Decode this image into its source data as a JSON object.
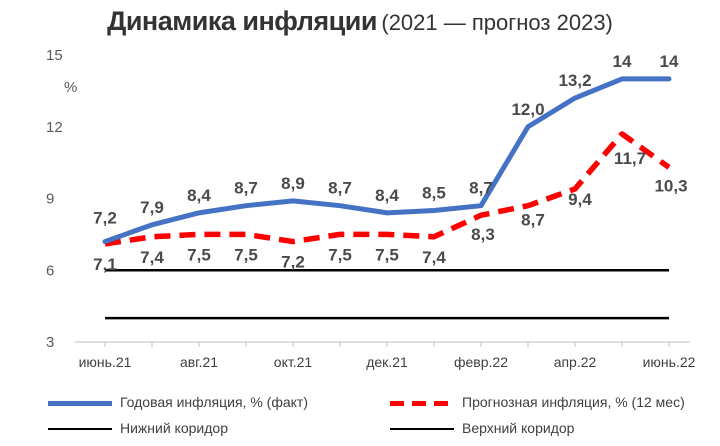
{
  "title": {
    "main": "Динамика инфляции",
    "sub": "(2021 — прогноз 2023)"
  },
  "chart_data": {
    "type": "line",
    "y_unit": "%",
    "ylim": [
      3,
      15
    ],
    "y_ticks": [
      "3",
      "6",
      "9",
      "12",
      "15"
    ],
    "x_tick_labels": [
      "июнь.21",
      "авг.21",
      "окт.21",
      "дек.21",
      "февр.22",
      "апр.22",
      "июнь.22"
    ],
    "grid": false,
    "legend_position": "bottom",
    "series": [
      {
        "name": "Годовая инфляция, % (факт)",
        "color": "#4472C4",
        "style": "solid",
        "values": [
          7.2,
          7.9,
          8.4,
          8.7,
          8.9,
          8.7,
          8.4,
          8.5,
          8.7,
          12.0,
          13.2,
          14,
          14
        ],
        "labels": [
          "7,2",
          "7,9",
          "8,4",
          "8,7",
          "8,9",
          "8,7",
          "8,4",
          "8,5",
          "8,7",
          "12,0",
          "13,2",
          "14",
          "14"
        ]
      },
      {
        "name": "Прогнозная инфляция, % (12 мес)",
        "color": "#FF0000",
        "style": "dashed",
        "values": [
          7.1,
          7.4,
          7.5,
          7.5,
          7.2,
          7.5,
          7.5,
          7.4,
          8.3,
          8.7,
          9.4,
          11.7,
          10.3
        ],
        "labels": [
          "7,1",
          "7,4",
          "7,5",
          "7,5",
          "7,2",
          "7,5",
          "7,5",
          "7,4",
          "8,3",
          "8,7",
          "9,4",
          "11,7",
          "10,3"
        ]
      },
      {
        "name": "Нижний коридор",
        "color": "#000000",
        "style": "solid",
        "values": [
          4,
          4,
          4,
          4,
          4,
          4,
          4,
          4,
          4,
          4,
          4,
          4,
          4
        ]
      },
      {
        "name": "Верхний коридор",
        "color": "#000000",
        "style": "solid",
        "values": [
          6,
          6,
          6,
          6,
          6,
          6,
          6,
          6,
          6,
          6,
          6,
          6,
          6
        ]
      }
    ]
  },
  "legend": {
    "items": [
      "Годовая инфляция, % (факт)",
      "Прогнозная инфляция, % (12 мес)",
      "Нижний коридор",
      "Верхний коридор"
    ]
  }
}
